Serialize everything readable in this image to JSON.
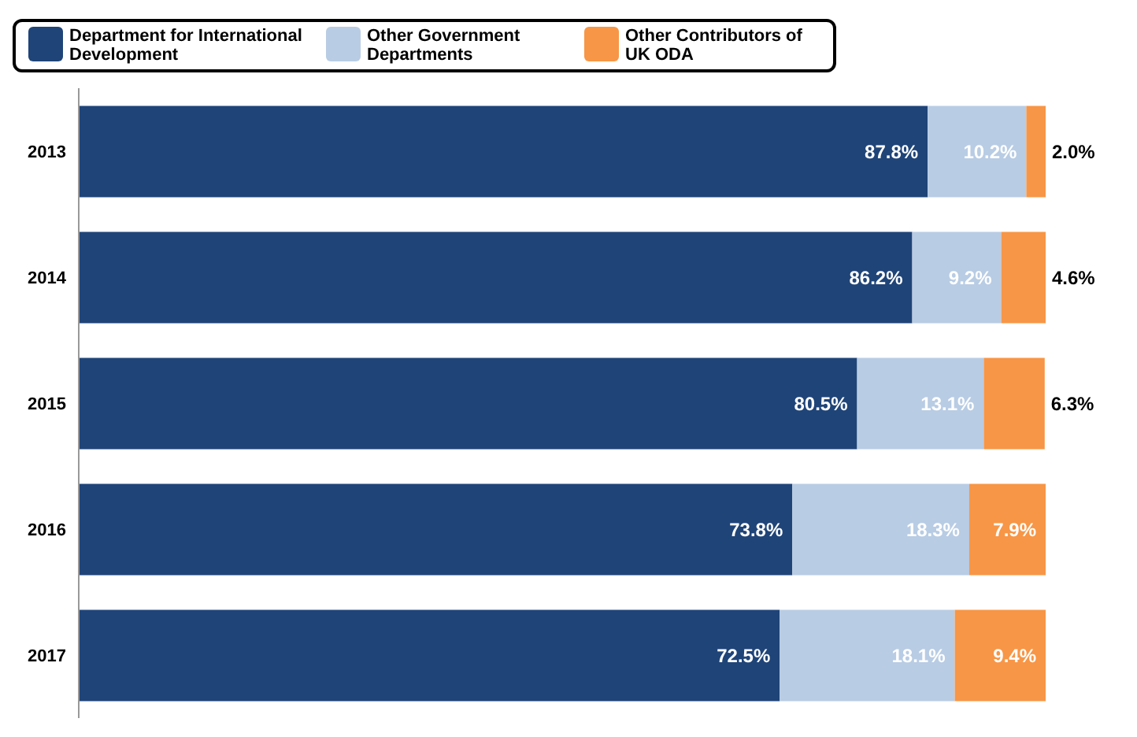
{
  "chart_data": {
    "type": "bar",
    "orientation": "horizontal",
    "stacked": true,
    "categories": [
      "2013",
      "2014",
      "2015",
      "2016",
      "2017"
    ],
    "series": [
      {
        "name": "Department for International Development",
        "color": "#1f4478",
        "values": [
          87.8,
          86.2,
          80.5,
          73.8,
          72.5
        ],
        "value_labels": [
          "87.8%",
          "86.2%",
          "80.5%",
          "73.8%",
          "72.5%"
        ]
      },
      {
        "name": "Other Government Departments",
        "color": "#b8cce4",
        "values": [
          10.2,
          9.2,
          13.1,
          18.3,
          18.1
        ],
        "value_labels": [
          "10.2%",
          "9.2%",
          "13.1%",
          "18.3%",
          "18.1%"
        ]
      },
      {
        "name": "Other Contributors of UK ODA",
        "color": "#f79646",
        "values": [
          2.0,
          4.6,
          6.3,
          7.9,
          9.4
        ],
        "value_labels": [
          "2.0%",
          "4.6%",
          "6.3%",
          "7.9%",
          "9.4%"
        ]
      }
    ],
    "legend": "top",
    "tick_labels": "y"
  }
}
